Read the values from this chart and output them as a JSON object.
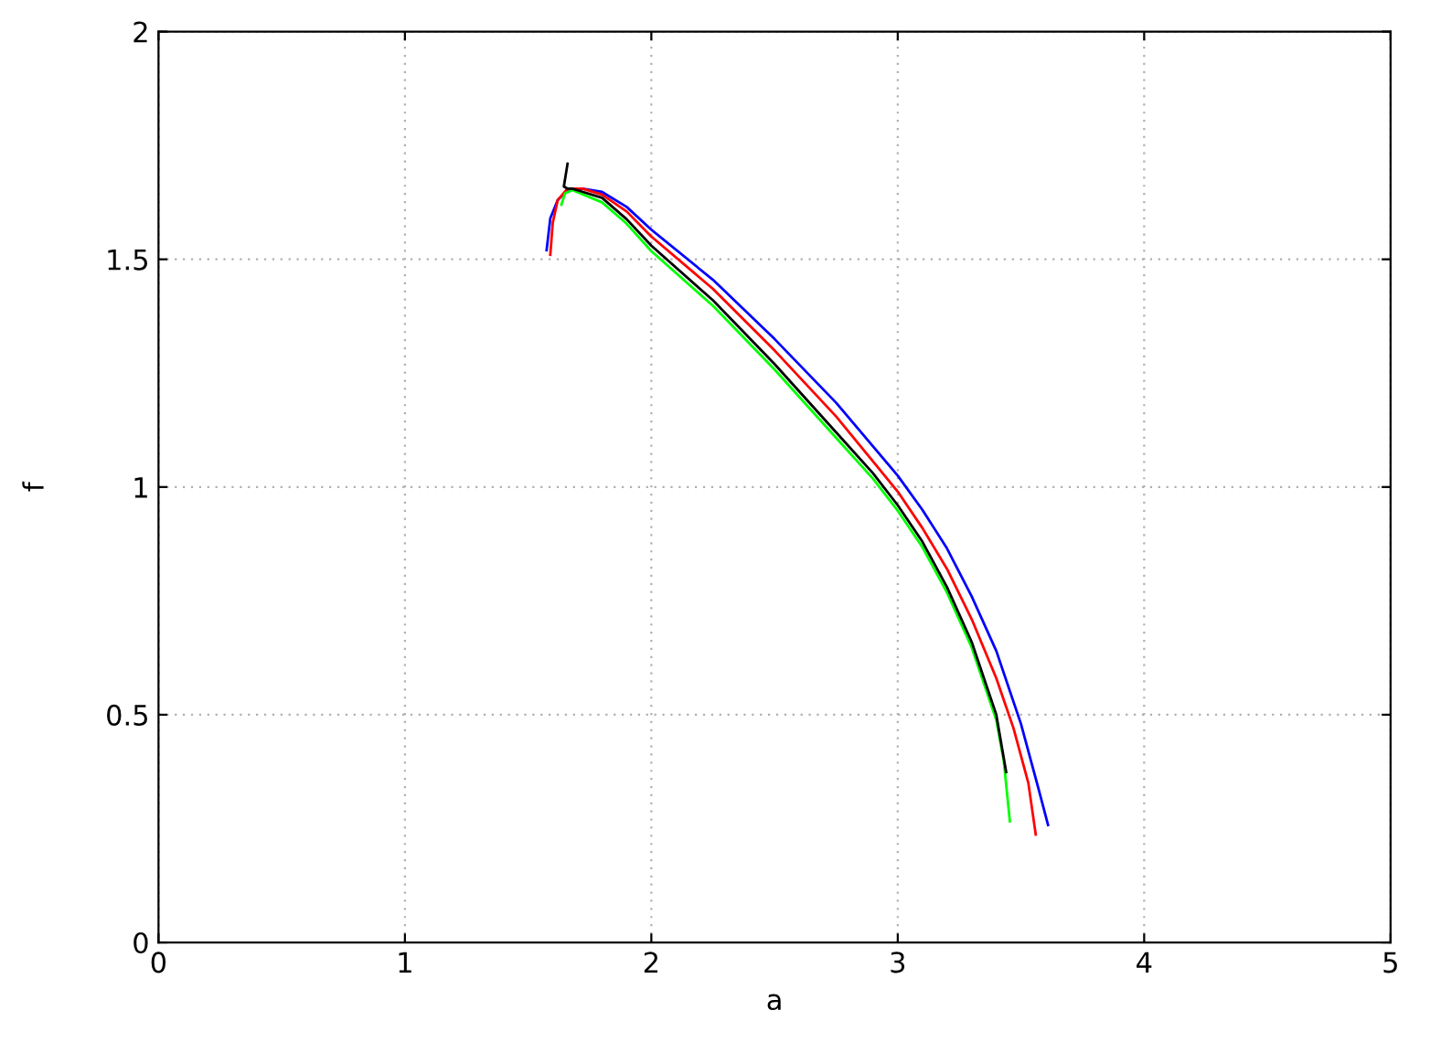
{
  "chart_data": {
    "type": "line",
    "xlabel": "a",
    "ylabel": "f",
    "xlim": [
      0,
      5
    ],
    "ylim": [
      0,
      2
    ],
    "xticks": [
      0,
      1,
      2,
      3,
      4,
      5
    ],
    "yticks": [
      0,
      0.5,
      1,
      1.5,
      2
    ],
    "grid": true,
    "marker": "none",
    "line_style": "solid",
    "series": [
      {
        "color": "#0000ff",
        "x": [
          1.575,
          1.59,
          1.62,
          1.66,
          1.72,
          1.8,
          1.9,
          2.0,
          2.25,
          2.5,
          2.75,
          3.0,
          3.1,
          3.2,
          3.3,
          3.4,
          3.5,
          3.57,
          3.61
        ],
        "values": [
          1.52,
          1.59,
          1.63,
          1.652,
          1.655,
          1.648,
          1.615,
          1.565,
          1.455,
          1.325,
          1.185,
          1.025,
          0.95,
          0.865,
          0.76,
          0.64,
          0.48,
          0.34,
          0.258
        ]
      },
      {
        "color": "#ff0000",
        "x": [
          1.59,
          1.6,
          1.62,
          1.66,
          1.72,
          1.8,
          1.9,
          2.0,
          2.25,
          2.5,
          2.75,
          3.0,
          3.1,
          3.2,
          3.3,
          3.4,
          3.47,
          3.53,
          3.56
        ],
        "values": [
          1.51,
          1.58,
          1.63,
          1.655,
          1.655,
          1.642,
          1.605,
          1.55,
          1.435,
          1.3,
          1.155,
          0.99,
          0.91,
          0.82,
          0.71,
          0.58,
          0.47,
          0.35,
          0.237
        ]
      },
      {
        "color": "#00ff00",
        "x": [
          1.635,
          1.65,
          1.68,
          1.8,
          1.9,
          2.0,
          2.25,
          2.5,
          2.75,
          2.9,
          3.0,
          3.1,
          3.2,
          3.3,
          3.4,
          3.43,
          3.455
        ],
        "values": [
          1.62,
          1.645,
          1.652,
          1.625,
          1.578,
          1.518,
          1.398,
          1.258,
          1.108,
          1.018,
          0.948,
          0.868,
          0.768,
          0.648,
          0.488,
          0.4,
          0.266
        ]
      },
      {
        "color": "#000000",
        "x": [
          1.66,
          1.645,
          1.66,
          1.68,
          1.8,
          1.9,
          2.0,
          2.25,
          2.5,
          2.75,
          2.9,
          3.0,
          3.1,
          3.2,
          3.3,
          3.4,
          3.44
        ],
        "values": [
          1.71,
          1.66,
          1.655,
          1.655,
          1.635,
          1.588,
          1.53,
          1.41,
          1.27,
          1.12,
          1.03,
          0.96,
          0.88,
          0.78,
          0.66,
          0.5,
          0.374
        ]
      }
    ]
  }
}
